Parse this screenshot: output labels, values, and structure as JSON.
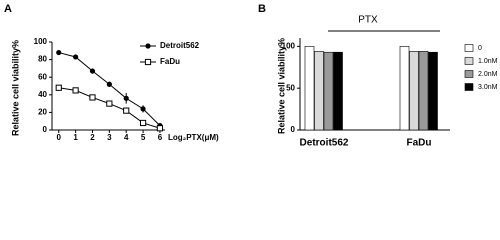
{
  "chart_data": [
    {
      "type": "line",
      "label": "A",
      "y_label": "Relative cell viability%",
      "x_label": "Log₂PTX(μM)",
      "x": [
        0,
        1,
        2,
        3,
        4,
        5,
        6
      ],
      "xlim": [
        -0.4,
        6.3
      ],
      "xticks": [
        0,
        1,
        2,
        3,
        4,
        5,
        6
      ],
      "ylim": [
        0,
        100
      ],
      "yticks": [
        0,
        20,
        40,
        60,
        80,
        100
      ],
      "legend": "top-right",
      "series": [
        {
          "name": "Detroit562",
          "color": "#000000",
          "marker": "filled-circle",
          "values": [
            88,
            83,
            67,
            52,
            36,
            24,
            5
          ],
          "errors": [
            2,
            2,
            3,
            3,
            6,
            4,
            2
          ]
        },
        {
          "name": "FaDu",
          "color": "#000000",
          "marker": "open-square",
          "values": [
            48,
            45,
            37,
            30,
            22,
            8,
            2
          ],
          "errors": [
            2,
            3,
            2,
            3,
            3,
            2,
            1
          ]
        }
      ]
    },
    {
      "type": "bar",
      "label": "B",
      "y_label": "Relative cell viability%",
      "annotation": "PTX",
      "categories": [
        "Detroit562",
        "FaDu"
      ],
      "ylim": [
        0,
        110
      ],
      "yticks": [
        0,
        50,
        100
      ],
      "legend": "right",
      "series": [
        {
          "name": "0",
          "color": "#ffffff",
          "values": [
            100,
            100
          ]
        },
        {
          "name": "1.0nM",
          "color": "#d9d9d9",
          "values": [
            94,
            94
          ]
        },
        {
          "name": "2.0nM",
          "color": "#9a9a9a",
          "values": [
            93,
            94
          ]
        },
        {
          "name": "3.0nM",
          "color": "#000000",
          "values": [
            93,
            93
          ]
        }
      ]
    }
  ]
}
